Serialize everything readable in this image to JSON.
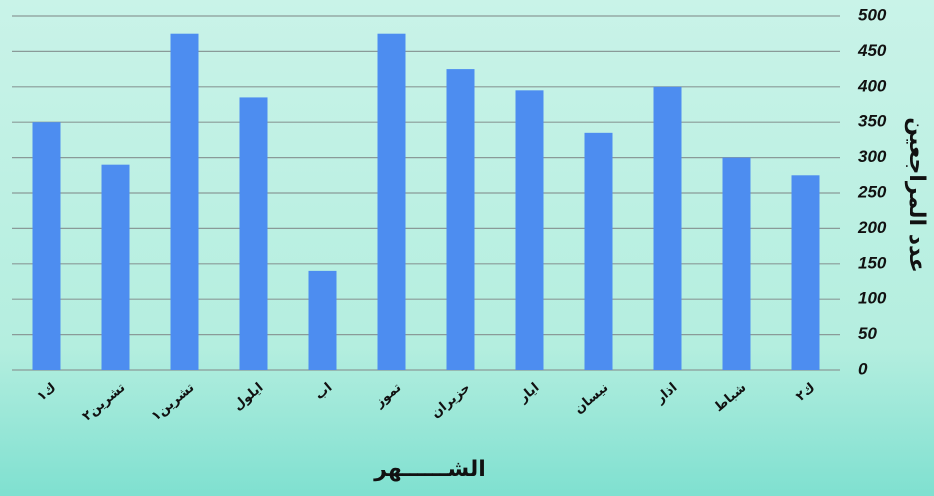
{
  "chart_data": {
    "type": "bar",
    "x_label": "الشــــــهر",
    "y_label": "عدد المراجعين",
    "categories": [
      "ك١",
      "تشرين٢",
      "تشرين١",
      "ايلول",
      "اب",
      "تموز",
      "حزيران",
      "ايار",
      "نيسان",
      "اذار",
      "شباط",
      "ك٢"
    ],
    "values": [
      350,
      290,
      475,
      385,
      140,
      475,
      425,
      395,
      335,
      400,
      300,
      275
    ],
    "color": "#4d8df0",
    "ylim": [
      0,
      500
    ],
    "yticks": [
      0,
      50,
      100,
      150,
      200,
      250,
      300,
      350,
      400,
      450,
      500
    ],
    "grid": true
  }
}
